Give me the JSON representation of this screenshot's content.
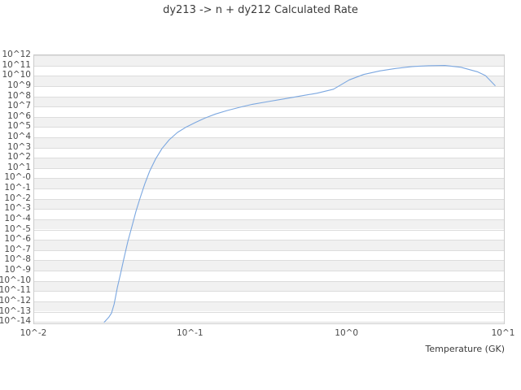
{
  "title": "dy213 -> n + dy212 Calculated Rate",
  "colors": {
    "curve": "#7ba7e0",
    "band_gray": "#f1f1f1",
    "gridline": "#dcdcdc",
    "spine": "#cccccc",
    "text": "#3b3b3b",
    "background": "#ffffff"
  },
  "chart_data": {
    "type": "line",
    "title": "dy213 -> n + dy212 Calculated Rate",
    "xlabel": "Temperature (GK)",
    "ylabel": "",
    "xscale": "log",
    "yscale": "log",
    "xlim_log10": [
      -2,
      1
    ],
    "ylim_log10": [
      -14.15,
      12
    ],
    "grid": "horizontal decade gridlines with alternating gray/white bands, no vertical gridlines",
    "legend": "none",
    "x_ticks": {
      "labels": [
        "10^-2",
        "10^-1",
        "10^0",
        "10^1"
      ],
      "log10_values": [
        -2,
        -1,
        0,
        1
      ]
    },
    "y_ticks": {
      "labels": [
        "10^12",
        "10^11",
        "10^10",
        "10^9",
        "10^8",
        "10^7",
        "10^6",
        "10^5",
        "10^4",
        "10^3",
        "10^2",
        "10^1",
        "10^-0",
        "10^-1",
        "10^-2",
        "10^-3",
        "10^-4",
        "10^-5",
        "10^-6",
        "10^-7",
        "10^-8",
        "10^-9",
        "10^-10",
        "10^-11",
        "10^-12",
        "10^-13",
        "10^-14"
      ],
      "log10_values": [
        12,
        11,
        10,
        9,
        8,
        7,
        6,
        5,
        4,
        3,
        2,
        1,
        0,
        -1,
        -2,
        -3,
        -4,
        -5,
        -6,
        -7,
        -8,
        -9,
        -10,
        -11,
        -12,
        -13,
        -14
      ]
    },
    "series": [
      {
        "name": "calculated rate",
        "color": "#7ba7e0",
        "x_temperature_GK": [
          0.028,
          0.03,
          0.0312,
          0.0324,
          0.034,
          0.0356,
          0.0373,
          0.0396,
          0.0421,
          0.0447,
          0.0474,
          0.0509,
          0.0547,
          0.0596,
          0.0655,
          0.0729,
          0.0822,
          0.0938,
          0.107,
          0.123,
          0.144,
          0.172,
          0.206,
          0.247,
          0.313,
          0.398,
          0.505,
          0.641,
          0.815,
          1.03,
          1.27,
          1.61,
          2.05,
          2.6,
          3.3,
          4.2,
          5.32,
          6.76,
          7.62,
          8.79
        ],
        "log10_rate": [
          -14.04,
          -13.53,
          -13.14,
          -12.28,
          -10.63,
          -9.31,
          -7.9,
          -6.18,
          -4.69,
          -3.2,
          -1.95,
          -0.54,
          0.71,
          1.88,
          2.9,
          3.76,
          4.47,
          5.01,
          5.44,
          5.87,
          6.27,
          6.62,
          6.93,
          7.21,
          7.48,
          7.75,
          8.03,
          8.3,
          8.69,
          9.6,
          10.12,
          10.47,
          10.72,
          10.9,
          10.98,
          11.0,
          10.83,
          10.39,
          10.02,
          9.04
        ]
      }
    ]
  }
}
